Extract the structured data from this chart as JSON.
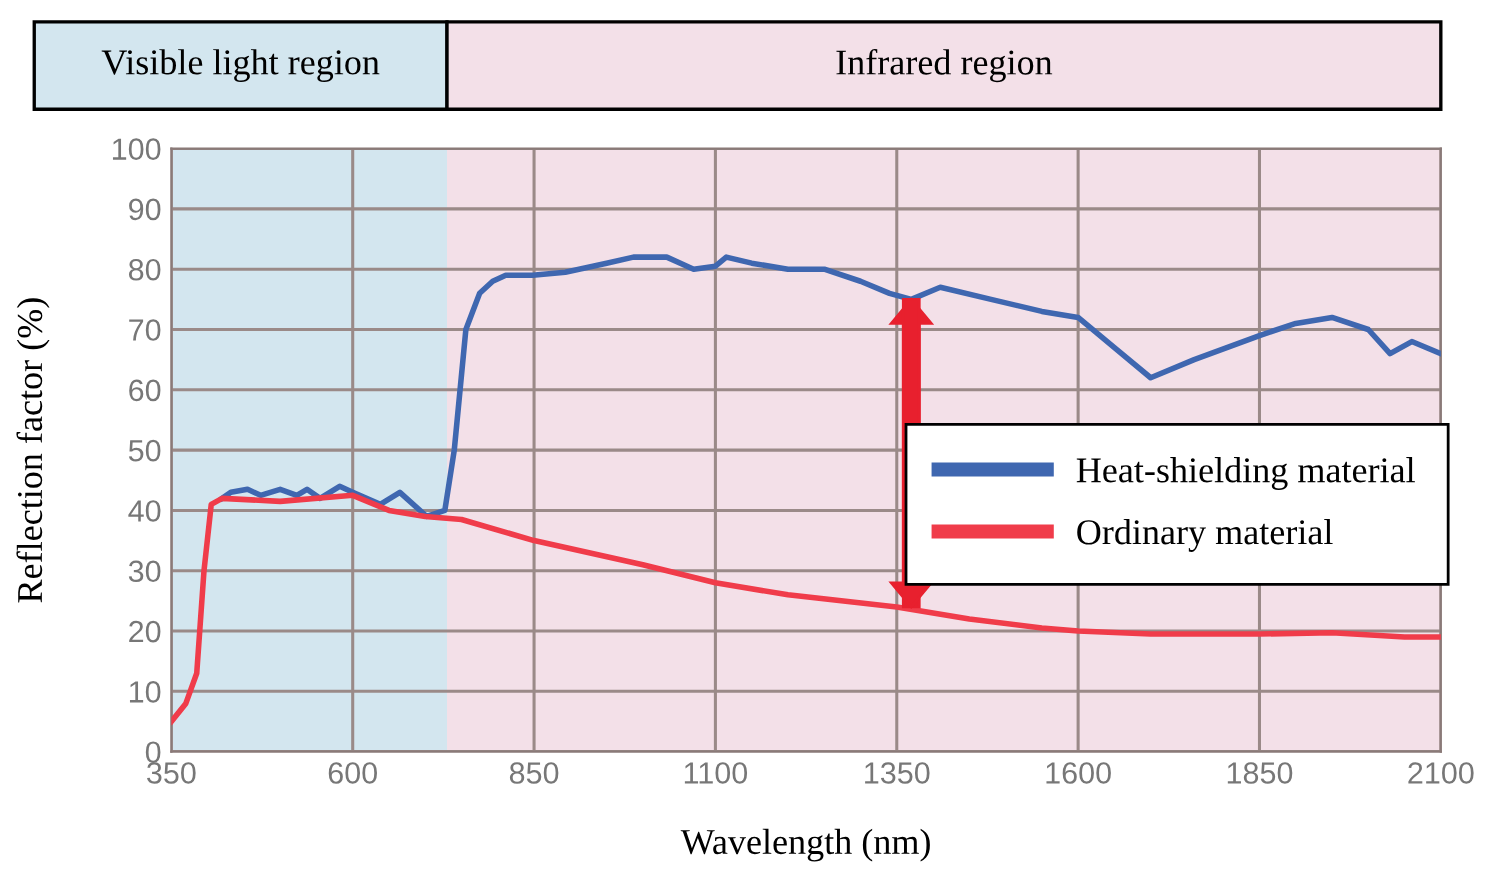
{
  "chart_data": {
    "type": "line",
    "xlabel": "Wavelength (nm)",
    "ylabel": "Reflection factor (%)",
    "xlim": [
      350,
      2100
    ],
    "xticks": [
      350,
      600,
      850,
      1100,
      1350,
      1600,
      1850,
      2100
    ],
    "ylim": [
      0,
      100
    ],
    "yticks": [
      0,
      10,
      20,
      30,
      40,
      50,
      60,
      70,
      80,
      90,
      100
    ],
    "grid": true,
    "legend": "right",
    "bands": [
      {
        "axis": "x",
        "from": 350,
        "to": 730,
        "label": "Visible light region",
        "color": "#d3e6ef"
      },
      {
        "axis": "x",
        "from": 730,
        "to": 2100,
        "label": "Infrared region",
        "color": "#f3e0e8"
      }
    ],
    "series": [
      {
        "name": "Heat-shielding material",
        "color": "#3f67b0",
        "x": [
          420,
          432,
          455,
          473,
          500,
          523,
          537,
          555,
          582,
          600,
          638,
          665,
          702,
          727,
          740,
          756,
          775,
          793,
          811,
          848,
          893,
          950,
          987,
          1033,
          1070,
          1100,
          1115,
          1150,
          1200,
          1250,
          1300,
          1340,
          1370,
          1410,
          1480,
          1550,
          1600,
          1650,
          1700,
          1760,
          1850,
          1900,
          1950,
          2000,
          2030,
          2060,
          2100
        ],
        "values": [
          42,
          43,
          43.5,
          42.5,
          43.5,
          42.5,
          43.5,
          42,
          44,
          43,
          41,
          43,
          39,
          40,
          50,
          70,
          76,
          78,
          79,
          79,
          79.5,
          81,
          82,
          82,
          80,
          80.5,
          82,
          81,
          80,
          80,
          78,
          76,
          75,
          77,
          75,
          73,
          72,
          67,
          62,
          65,
          69,
          71,
          72,
          70,
          66,
          68,
          66
        ]
      },
      {
        "name": "Ordinary material",
        "color": "#f03c4a",
        "x": [
          350,
          370,
          385,
          395,
          405,
          420,
          500,
          600,
          650,
          700,
          750,
          850,
          1000,
          1100,
          1200,
          1350,
          1450,
          1550,
          1600,
          1700,
          1850,
          1950,
          2050,
          2100
        ],
        "values": [
          5,
          8,
          13,
          30,
          41,
          42,
          41.5,
          42.5,
          40,
          39,
          38.5,
          35,
          31,
          28,
          26,
          24,
          22,
          20.5,
          20,
          19.5,
          19.5,
          19.7,
          19,
          19
        ]
      }
    ]
  }
}
